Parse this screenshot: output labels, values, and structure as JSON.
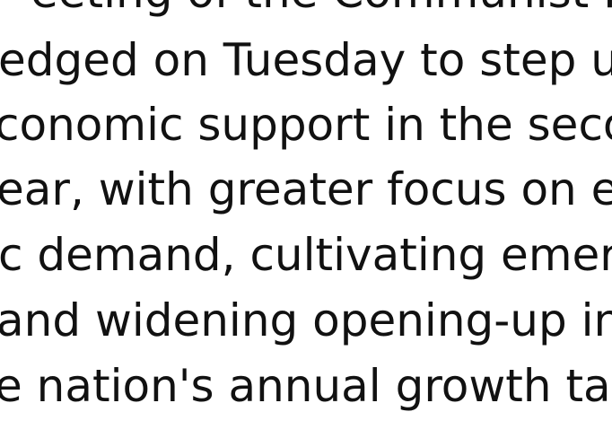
{
  "document": {
    "lines": [
      "eeting of the Communist Pa",
      "edged on Tuesday to step u",
      "conomic support in the seco",
      "ear, with greater focus on ex",
      "c demand, cultivating emerg",
      "and widening opening-up in",
      "e nation's annual growth targ"
    ]
  },
  "colors": {
    "text": "#111111",
    "background": "#ffffff"
  }
}
